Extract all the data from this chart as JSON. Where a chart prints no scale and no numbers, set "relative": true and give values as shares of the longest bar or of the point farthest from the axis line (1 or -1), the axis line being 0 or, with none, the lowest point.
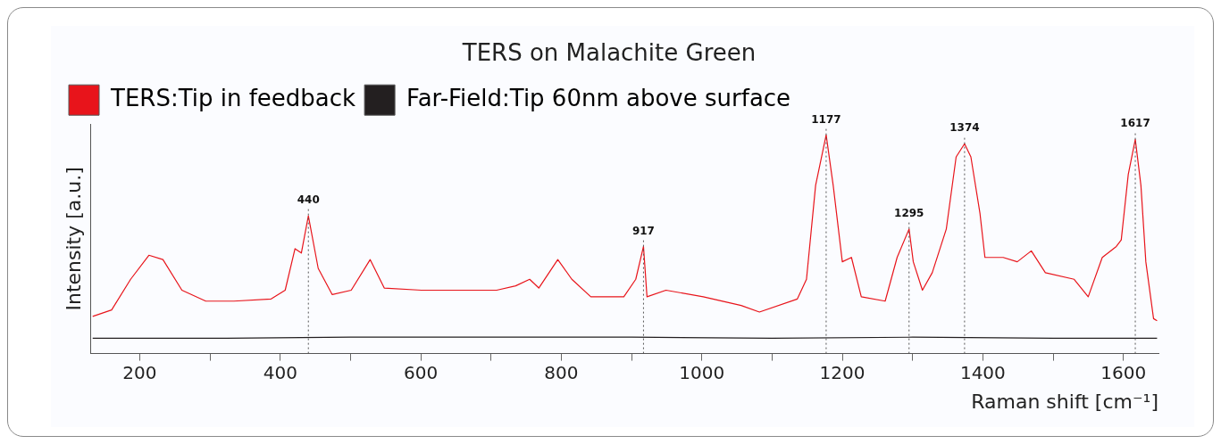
{
  "chart_data": {
    "type": "line",
    "title": "TERS on Malachite Green",
    "xlabel": "Raman shift [cm⁻¹]",
    "ylabel": "Intensity [a.u.]",
    "relative": true,
    "xlim": [
      130,
      1650
    ],
    "xticks": [
      200,
      {
        "value": 300,
        "label": null
      },
      400,
      {
        "value": 500,
        "label": null
      },
      600,
      {
        "value": 700,
        "label": null
      },
      800,
      {
        "value": 900,
        "label": null
      },
      1000,
      {
        "value": 1100,
        "label": null
      },
      1200,
      {
        "value": 1300,
        "label": null
      },
      1400,
      {
        "value": 1500,
        "label": null
      },
      1600
    ],
    "legend": "top left",
    "marker": "none",
    "grid": false,
    "series": [
      {
        "name": "TERS:Tip in feedback",
        "color": "#e8141b",
        "x": [
          133,
          160,
          187,
          213,
          233,
          260,
          294,
          334,
          387,
          407,
          421,
          430,
          440,
          454,
          474,
          501,
          528,
          548,
          601,
          655,
          708,
          735,
          755,
          768,
          795,
          815,
          842,
          889,
          906,
          917,
          922,
          949,
          1002,
          1056,
          1082,
          1136,
          1149,
          1162,
          1177,
          1187,
          1200,
          1213,
          1227,
          1261,
          1278,
          1295,
          1301,
          1314,
          1328,
          1348,
          1362,
          1374,
          1383,
          1396,
          1403,
          1429,
          1449,
          1469,
          1489,
          1530,
          1550,
          1570,
          1590,
          1597,
          1607,
          1617,
          1625,
          1632,
          1643,
          1648
        ],
        "values": [
          0.17,
          0.2,
          0.34,
          0.45,
          0.43,
          0.29,
          0.24,
          0.24,
          0.25,
          0.29,
          0.48,
          0.46,
          0.63,
          0.39,
          0.27,
          0.29,
          0.43,
          0.3,
          0.29,
          0.29,
          0.29,
          0.31,
          0.34,
          0.3,
          0.43,
          0.34,
          0.26,
          0.26,
          0.34,
          0.49,
          0.26,
          0.29,
          0.26,
          0.22,
          0.19,
          0.25,
          0.34,
          0.77,
          1,
          0.77,
          0.42,
          0.44,
          0.26,
          0.24,
          0.44,
          0.57,
          0.42,
          0.29,
          0.37,
          0.57,
          0.9,
          0.96,
          0.9,
          0.64,
          0.44,
          0.44,
          0.42,
          0.47,
          0.37,
          0.34,
          0.26,
          0.44,
          0.49,
          0.52,
          0.82,
          0.98,
          0.77,
          0.42,
          0.16,
          0.15
        ]
      },
      {
        "name": "Far-Field:Tip 60nm above surface",
        "color": "#231f20",
        "x": [
          133,
          300,
          500,
          700,
          900,
          1100,
          1300,
          1500,
          1648
        ],
        "values": [
          0.07,
          0.07,
          0.075,
          0.075,
          0.075,
          0.07,
          0.075,
          0.07,
          0.07
        ]
      }
    ],
    "ref_lines": [
      {
        "axis": "x",
        "value": 440,
        "line_style": "dotted"
      },
      {
        "axis": "x",
        "value": 917,
        "line_style": "dotted"
      },
      {
        "axis": "x",
        "value": 1177,
        "line_style": "dotted"
      },
      {
        "axis": "x",
        "value": 1295,
        "line_style": "dotted"
      },
      {
        "axis": "x",
        "value": 1374,
        "line_style": "dotted"
      },
      {
        "axis": "x",
        "value": 1617,
        "line_style": "dotted"
      }
    ],
    "annotations": [
      {
        "text": "440",
        "x": 440,
        "y": 0.63
      },
      {
        "text": "917",
        "x": 917,
        "y": 0.49
      },
      {
        "text": "1177",
        "x": 1177,
        "y": 1
      },
      {
        "text": "1295",
        "x": 1295,
        "y": 0.57
      },
      {
        "text": "1374",
        "x": 1374,
        "y": 0.96
      },
      {
        "text": "1617",
        "x": 1617,
        "y": 0.98
      }
    ]
  }
}
